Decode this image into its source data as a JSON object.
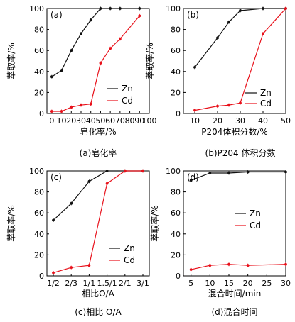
{
  "colors": {
    "zn": "#111111",
    "cd": "#e8101a"
  },
  "chart_data": [
    {
      "type": "line",
      "tag": "(a)",
      "caption": "(a)皂化率",
      "xlabel": "皂化率/%",
      "ylabel": "萃取率/%",
      "xlim": [
        -5,
        100
      ],
      "ylim": [
        0,
        100
      ],
      "xticks": [
        0,
        10,
        20,
        30,
        40,
        50,
        60,
        70,
        80,
        90,
        100
      ],
      "yticks": [
        0,
        20,
        40,
        60,
        80,
        100
      ],
      "legend": "right",
      "series": [
        {
          "name": "Zn",
          "x": [
            0,
            10,
            20,
            30,
            40,
            50,
            60,
            70,
            90
          ],
          "y": [
            35,
            41,
            60,
            76,
            89,
            100,
            100,
            100,
            100
          ]
        },
        {
          "name": "Cd",
          "x": [
            0,
            10,
            20,
            30,
            40,
            50,
            60,
            70,
            90
          ],
          "y": [
            2,
            2,
            6,
            8,
            9,
            48,
            62,
            71,
            93
          ]
        }
      ]
    },
    {
      "type": "line",
      "tag": "(b)",
      "caption": "(b)P204 体积分数",
      "xlabel": "P204体积分数/%",
      "ylabel": "萃取率/%",
      "xlim": [
        5,
        50
      ],
      "ylim": [
        0,
        100
      ],
      "xticks": [
        10,
        20,
        30,
        40,
        50
      ],
      "yticks": [
        0,
        20,
        40,
        60,
        80,
        100
      ],
      "legend": "right",
      "series": [
        {
          "name": "Zn",
          "x": [
            10,
            20,
            25,
            30,
            40,
            50
          ],
          "y": [
            44,
            72,
            87,
            98,
            100,
            100
          ]
        },
        {
          "name": "Cd",
          "x": [
            10,
            20,
            25,
            30,
            40,
            50
          ],
          "y": [
            3,
            7,
            8,
            10,
            76,
            100
          ]
        }
      ]
    },
    {
      "type": "line",
      "tag": "(c)",
      "caption": "(c)相比 O/A",
      "xlabel": "相比O/A",
      "ylabel": "萃取率/%",
      "categories": [
        "1/2",
        "2/3",
        "1/1",
        "1.5/1",
        "2/1",
        "3/1"
      ],
      "ylim": [
        0,
        100
      ],
      "yticks": [
        0,
        20,
        40,
        60,
        80,
        100
      ],
      "legend": "bottom-right",
      "series": [
        {
          "name": "Zn",
          "values": [
            53,
            69,
            90,
            100,
            100,
            100
          ]
        },
        {
          "name": "Cd",
          "values": [
            3,
            8,
            10,
            88,
            100,
            100
          ]
        }
      ]
    },
    {
      "type": "line",
      "tag": "(d)",
      "caption": "(d)混合时间",
      "xlabel": "混合时间/min",
      "ylabel": "萃取率/%",
      "xlim": [
        3,
        30
      ],
      "ylim": [
        0,
        100
      ],
      "xticks": [
        5,
        10,
        15,
        20,
        25,
        30
      ],
      "yticks": [
        0,
        20,
        40,
        60,
        80,
        100
      ],
      "legend": "right",
      "series": [
        {
          "name": "Zn",
          "x": [
            5,
            10,
            15,
            20,
            30
          ],
          "y": [
            91,
            98,
            98,
            99,
            99
          ]
        },
        {
          "name": "Cd",
          "x": [
            5,
            10,
            15,
            20,
            30
          ],
          "y": [
            6,
            10,
            11,
            10,
            11
          ]
        }
      ]
    }
  ]
}
